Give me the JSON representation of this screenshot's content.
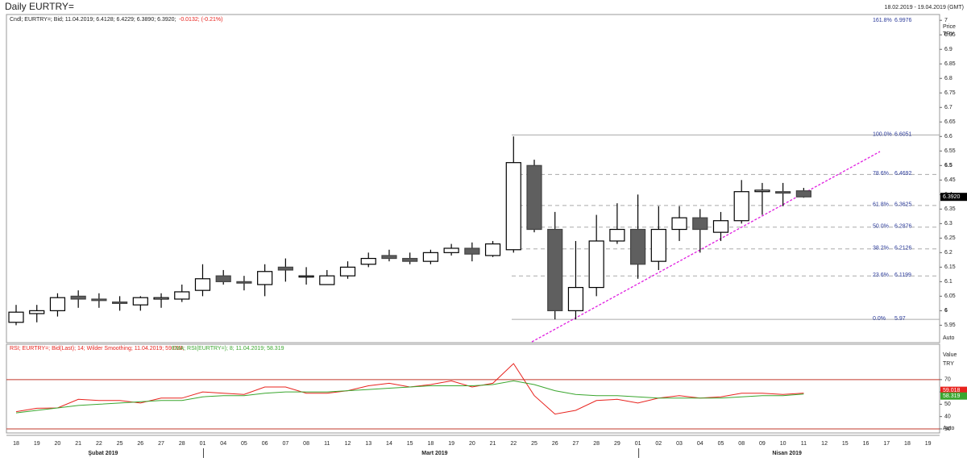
{
  "title": "Daily EURTRY=",
  "date_range": "18.02.2019 - 19.04.2019 (GMT)",
  "price_legend": "Cndl; EURTRY=; Bid; 11.04.2019; 6.4128; 6.4229; 6.3890; 6.3920;",
  "price_change": "-0.0132; (-0.21%)",
  "price_axis_title": "Price",
  "currency": "TRY",
  "scale_mode": "Auto",
  "rsi_legend": "RSI; EURTRY=; Bid(Last); 14; Wilder Smoothing; 11.04.2019; 59.018;",
  "ema_legend": "EMA; RSI(EURTRY=); 8; 11.04.2019; 58.319",
  "rsi_axis_title": "Value",
  "months": [
    "Şubat 2019",
    "Mart 2019",
    "Nisan 2019"
  ],
  "chart_data": [
    {
      "type": "candlestick",
      "categories": [
        "18",
        "19",
        "20",
        "21",
        "22",
        "25",
        "26",
        "27",
        "28",
        "01",
        "04",
        "05",
        "06",
        "07",
        "08",
        "11",
        "12",
        "13",
        "14",
        "15",
        "18",
        "19",
        "20",
        "21",
        "22",
        "25",
        "26",
        "27",
        "28",
        "29",
        "01",
        "02",
        "03",
        "04",
        "05",
        "08",
        "09",
        "10",
        "11",
        "12",
        "15",
        "16",
        "17",
        "18",
        "19"
      ],
      "open": [
        5.96,
        5.99,
        6.0,
        6.05,
        6.04,
        6.03,
        6.02,
        6.04,
        6.04,
        6.07,
        6.12,
        6.1,
        6.09,
        6.15,
        6.12,
        6.09,
        6.12,
        6.16,
        6.19,
        6.18,
        6.17,
        6.2,
        6.215,
        6.19,
        6.21,
        6.5,
        6.28,
        6.0,
        6.08,
        6.24,
        6.28,
        6.17,
        6.28,
        6.32,
        6.27,
        6.31,
        6.41,
        6.41,
        6.4128,
        null,
        null,
        null,
        null,
        null,
        null
      ],
      "high": [
        6.02,
        6.02,
        6.06,
        6.07,
        6.06,
        6.05,
        6.05,
        6.06,
        6.09,
        6.16,
        6.14,
        6.12,
        6.16,
        6.18,
        6.15,
        6.14,
        6.17,
        6.2,
        6.21,
        6.2,
        6.21,
        6.23,
        6.235,
        6.24,
        6.6,
        6.52,
        6.34,
        6.24,
        6.33,
        6.37,
        6.4,
        6.36,
        6.36,
        6.35,
        6.34,
        6.45,
        6.44,
        6.44,
        6.4229,
        null,
        null,
        null,
        null,
        null,
        null
      ],
      "low": [
        5.95,
        5.96,
        5.98,
        6.01,
        6.01,
        6.0,
        6.0,
        6.01,
        6.03,
        6.05,
        6.09,
        6.07,
        6.05,
        6.1,
        6.09,
        6.09,
        6.11,
        6.15,
        6.17,
        6.16,
        6.16,
        6.19,
        6.17,
        6.185,
        6.2,
        6.27,
        5.97,
        5.97,
        6.05,
        6.23,
        6.11,
        6.14,
        6.24,
        6.2,
        6.24,
        6.3,
        6.33,
        6.36,
        6.389,
        null,
        null,
        null,
        null,
        null,
        null
      ],
      "close": [
        5.995,
        6.0,
        6.045,
        6.04,
        6.035,
        6.025,
        6.045,
        6.045,
        6.065,
        6.11,
        6.1,
        6.095,
        6.135,
        6.14,
        6.12,
        6.12,
        6.15,
        6.18,
        6.18,
        6.17,
        6.2,
        6.215,
        6.195,
        6.23,
        6.51,
        6.28,
        6.0,
        6.08,
        6.24,
        6.28,
        6.16,
        6.28,
        6.32,
        6.28,
        6.31,
        6.41,
        6.415,
        6.405,
        6.392,
        null,
        null,
        null,
        null,
        null,
        null
      ],
      "up_color": "#ffffff",
      "down_color": "#5f5f5f",
      "ylim": [
        5.89,
        7.02
      ],
      "yticks": [
        5.95,
        6,
        6.05,
        6.1,
        6.15,
        6.2,
        6.25,
        6.3,
        6.35,
        6.4,
        6.45,
        6.5,
        6.55,
        6.6,
        6.65,
        6.7,
        6.75,
        6.8,
        6.85,
        6.9,
        6.95,
        7
      ],
      "fib_levels": [
        {
          "ratio": "161.8%",
          "value": 6.9976
        },
        {
          "ratio": "100.0%",
          "value": 6.6051
        },
        {
          "ratio": "78.6%",
          "value": 6.4692
        },
        {
          "ratio": "61.8%",
          "value": 6.3625
        },
        {
          "ratio": "50.0%",
          "value": 6.2876
        },
        {
          "ratio": "38.2%",
          "value": 6.2126
        },
        {
          "ratio": "23.6%",
          "value": 6.1199
        },
        {
          "ratio": "0.0%",
          "value": 5.97
        }
      ],
      "last_price": {
        "value": 6.392,
        "label": "6.3920"
      }
    },
    {
      "type": "line",
      "series": [
        {
          "name": "RSI",
          "color": "#e8231e",
          "values": [
            44,
            46.7,
            47,
            54,
            53,
            53,
            51,
            55,
            55,
            60,
            59,
            58,
            64,
            64,
            59,
            59,
            61,
            65,
            67,
            64,
            66,
            69,
            64,
            67,
            83,
            57,
            42,
            45,
            53,
            54,
            51,
            55,
            57,
            55,
            56,
            59,
            59,
            58,
            59.018,
            null,
            null,
            null,
            null,
            null,
            null
          ]
        },
        {
          "name": "EMA",
          "color": "#3aa62e",
          "values": [
            43,
            45,
            47,
            49,
            50,
            51,
            52,
            53,
            53,
            56,
            57,
            57,
            59,
            60,
            60,
            60,
            61,
            62,
            63,
            64,
            65,
            65,
            65,
            66,
            69,
            66,
            61,
            58,
            57,
            57,
            56,
            55,
            55,
            55,
            55,
            56,
            57,
            57,
            58.319,
            null,
            null,
            null,
            null,
            null,
            null
          ]
        }
      ],
      "ylim": [
        26.7,
        98.7
      ],
      "yticks": [
        30,
        40,
        50,
        60,
        70
      ],
      "bands": [
        70,
        30
      ]
    }
  ]
}
